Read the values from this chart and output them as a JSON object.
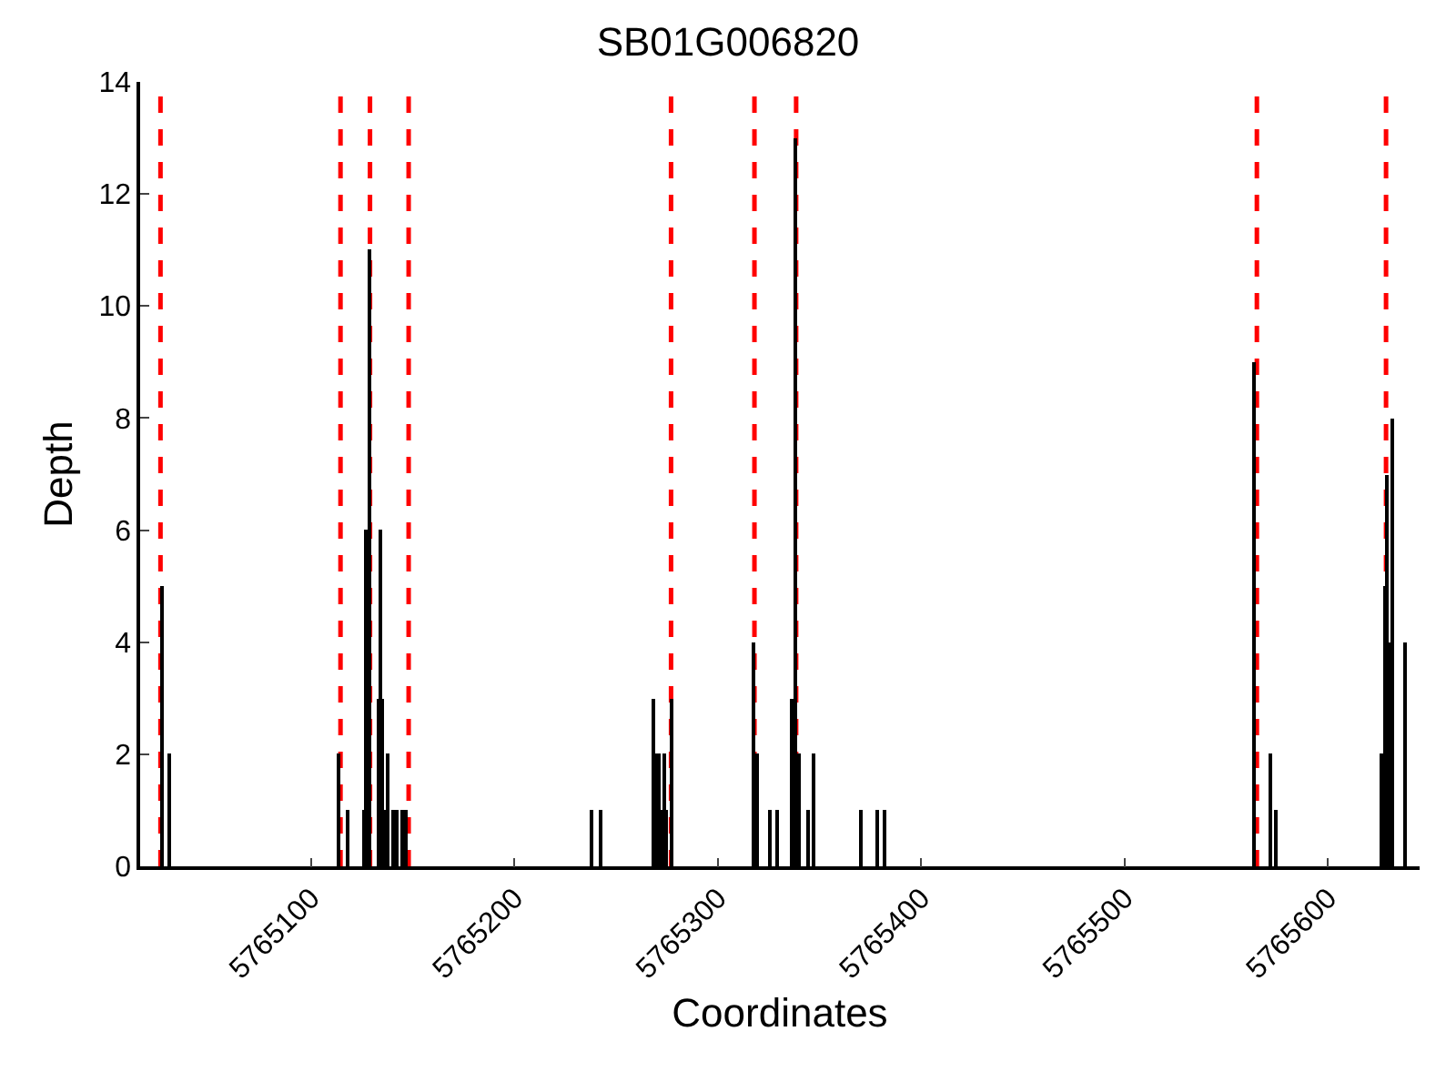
{
  "chart_data": {
    "type": "bar",
    "title": "SB01G006820",
    "xlabel": "Coordinates",
    "ylabel": "Depth",
    "x": [
      5765027,
      5765030,
      5765114,
      5765118,
      5765126,
      5765127,
      5765129,
      5765133,
      5765134,
      5765135,
      5765136,
      5765138,
      5765140,
      5765142,
      5765145,
      5765147,
      5765238,
      5765242,
      5765268,
      5765269,
      5765271,
      5765272,
      5765274,
      5765275,
      5765277,
      5765318,
      5765319,
      5765326,
      5765329,
      5765336,
      5765338,
      5765340,
      5765344,
      5765347,
      5765370,
      5765378,
      5765382,
      5765564,
      5765572,
      5765574,
      5765626,
      5765628,
      5765629,
      5765630,
      5765632,
      5765638
    ],
    "values": [
      5,
      2,
      2,
      1,
      1,
      6,
      11,
      3,
      6,
      3,
      1,
      2,
      1,
      1,
      1,
      1,
      1,
      1,
      3,
      2,
      2,
      1,
      2,
      1,
      3,
      4,
      2,
      1,
      1,
      3,
      13,
      2,
      1,
      2,
      1,
      1,
      1,
      9,
      2,
      1,
      2,
      5,
      7,
      4,
      8,
      4
    ],
    "color": "#000000",
    "xlim": [
      5765016,
      5765645
    ],
    "xticks": [
      5765100,
      5765200,
      5765300,
      5765400,
      5765500,
      5765600
    ],
    "ylim": [
      0,
      14
    ],
    "yticks": [
      0,
      2,
      4,
      6,
      8,
      10,
      12,
      14
    ],
    "grid": false,
    "ref_lines": [
      {
        "axis": "x",
        "value": 5765026,
        "color": "#ff0000",
        "line_style": "dashed"
      },
      {
        "axis": "x",
        "value": 5765114.5,
        "color": "#ff0000",
        "line_style": "dashed"
      },
      {
        "axis": "x",
        "value": 5765129,
        "color": "#ff0000",
        "line_style": "dashed"
      },
      {
        "axis": "x",
        "value": 5765148,
        "color": "#ff0000",
        "line_style": "dashed"
      },
      {
        "axis": "x",
        "value": 5765277,
        "color": "#ff0000",
        "line_style": "dashed"
      },
      {
        "axis": "x",
        "value": 5765318,
        "color": "#ff0000",
        "line_style": "dashed"
      },
      {
        "axis": "x",
        "value": 5765338.5,
        "color": "#ff0000",
        "line_style": "dashed"
      },
      {
        "axis": "x",
        "value": 5765565,
        "color": "#ff0000",
        "line_style": "dashed"
      },
      {
        "axis": "x",
        "value": 5765628.5,
        "color": "#ff0000",
        "line_style": "dashed"
      }
    ]
  }
}
